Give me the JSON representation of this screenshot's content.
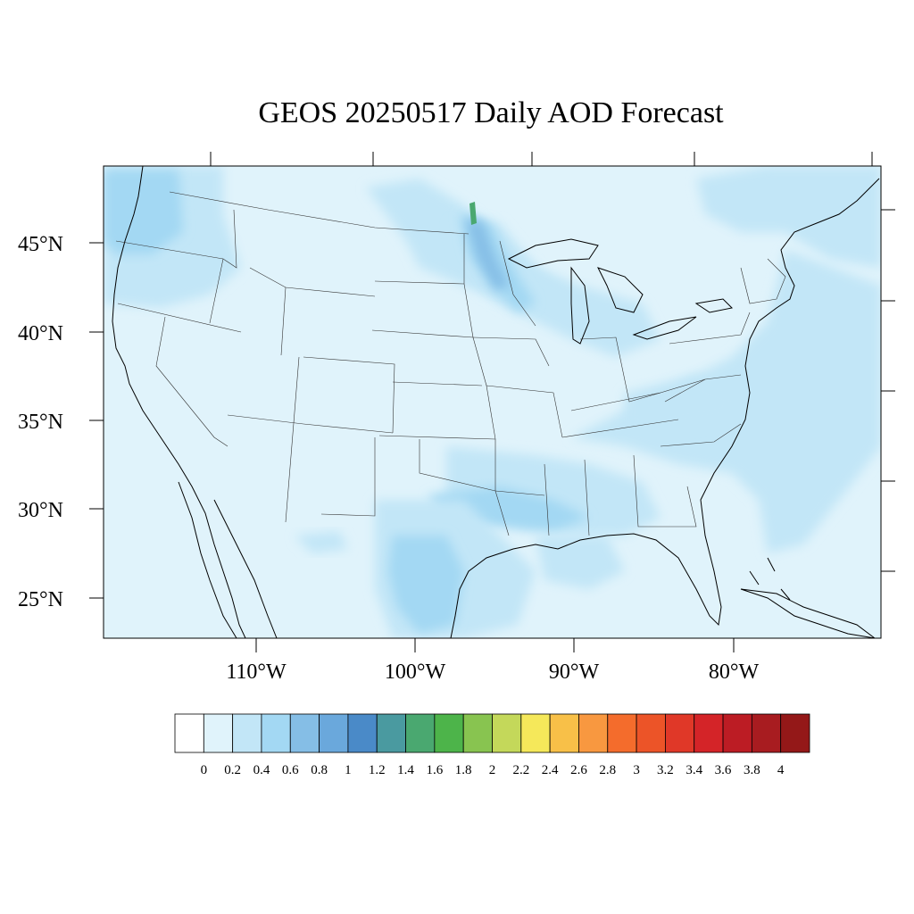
{
  "title": "GEOS 20250517 Daily AOD Forecast",
  "lat_labels": [
    "45°N",
    "40°N",
    "35°N",
    "30°N",
    "25°N"
  ],
  "lon_labels": [
    "110°W",
    "100°W",
    "90°W",
    "80°W"
  ],
  "colorbar": {
    "labels": [
      "0",
      "0.2",
      "0.4",
      "0.6",
      "0.8",
      "1",
      "1.2",
      "1.4",
      "1.6",
      "1.8",
      "2",
      "2.2",
      "2.4",
      "2.6",
      "2.8",
      "3",
      "3.2",
      "3.4",
      "3.6",
      "3.8",
      "4"
    ],
    "colors": [
      "#ffffff",
      "#e0f3fb",
      "#c2e6f7",
      "#a3d8f3",
      "#85bee6",
      "#6aa8dc",
      "#4a8ac8",
      "#4a9aa0",
      "#4aa870",
      "#4db44a",
      "#88c450",
      "#c4d85a",
      "#f5e85a",
      "#f8c048",
      "#f89840",
      "#f46c2c",
      "#ec5428",
      "#e03828",
      "#d42428",
      "#bc1c24",
      "#a81c20",
      "#941818"
    ]
  },
  "colors": {
    "aod_background": "#e0f3fb",
    "aod_light": "#c2e6f7",
    "aod_mid": "#a3d8f3",
    "aod_high": "#85bee6",
    "aod_peak": "#4a8ac8",
    "aod_spike": "#4aa870"
  }
}
